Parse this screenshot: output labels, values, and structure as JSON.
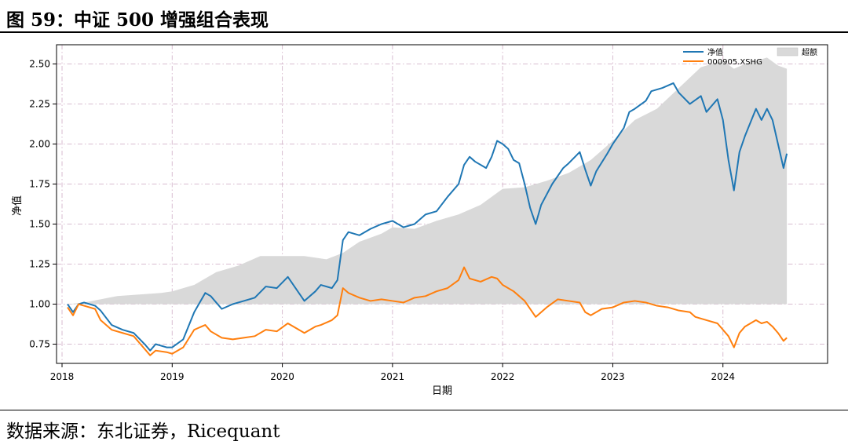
{
  "figure": {
    "title": "图 59：中证 500 增强组合表现",
    "source": "数据来源：东北证券，Ricequant"
  },
  "chart_data": {
    "type": "line",
    "xlabel": "日期",
    "ylabel": "净值",
    "xlim": [
      2017.95,
      2024.95
    ],
    "ylim": [
      0.63,
      2.62
    ],
    "x_ticks": [
      2018,
      2019,
      2020,
      2021,
      2022,
      2023,
      2024
    ],
    "x_tick_labels": [
      "2018",
      "2019",
      "2020",
      "2021",
      "2022",
      "2023",
      "2024"
    ],
    "y_ticks": [
      0.75,
      1.0,
      1.25,
      1.5,
      1.75,
      2.0,
      2.25,
      2.5
    ],
    "y_tick_labels": [
      "0.75",
      "1.00",
      "1.25",
      "1.50",
      "1.75",
      "2.00",
      "2.25",
      "2.50"
    ],
    "grid": true,
    "legend_placement": "top-right",
    "series": [
      {
        "name": "净值",
        "color": "#1f77b4",
        "points": [
          [
            2018.05,
            1.0
          ],
          [
            2018.1,
            0.95
          ],
          [
            2018.15,
            1.0
          ],
          [
            2018.2,
            1.01
          ],
          [
            2018.3,
            0.99
          ],
          [
            2018.35,
            0.96
          ],
          [
            2018.45,
            0.87
          ],
          [
            2018.55,
            0.84
          ],
          [
            2018.65,
            0.82
          ],
          [
            2018.75,
            0.75
          ],
          [
            2018.8,
            0.71
          ],
          [
            2018.85,
            0.75
          ],
          [
            2018.95,
            0.73
          ],
          [
            2019.0,
            0.73
          ],
          [
            2019.1,
            0.78
          ],
          [
            2019.2,
            0.95
          ],
          [
            2019.3,
            1.07
          ],
          [
            2019.35,
            1.05
          ],
          [
            2019.45,
            0.97
          ],
          [
            2019.55,
            1.0
          ],
          [
            2019.65,
            1.02
          ],
          [
            2019.75,
            1.04
          ],
          [
            2019.85,
            1.11
          ],
          [
            2019.95,
            1.1
          ],
          [
            2020.05,
            1.17
          ],
          [
            2020.2,
            1.02
          ],
          [
            2020.3,
            1.08
          ],
          [
            2020.35,
            1.12
          ],
          [
            2020.45,
            1.1
          ],
          [
            2020.5,
            1.15
          ],
          [
            2020.55,
            1.4
          ],
          [
            2020.6,
            1.45
          ],
          [
            2020.7,
            1.43
          ],
          [
            2020.8,
            1.47
          ],
          [
            2020.9,
            1.5
          ],
          [
            2021.0,
            1.52
          ],
          [
            2021.1,
            1.48
          ],
          [
            2021.2,
            1.5
          ],
          [
            2021.3,
            1.56
          ],
          [
            2021.4,
            1.58
          ],
          [
            2021.5,
            1.67
          ],
          [
            2021.6,
            1.75
          ],
          [
            2021.65,
            1.87
          ],
          [
            2021.7,
            1.92
          ],
          [
            2021.75,
            1.89
          ],
          [
            2021.85,
            1.85
          ],
          [
            2021.9,
            1.92
          ],
          [
            2021.95,
            2.02
          ],
          [
            2022.0,
            2.0
          ],
          [
            2022.05,
            1.97
          ],
          [
            2022.1,
            1.9
          ],
          [
            2022.15,
            1.88
          ],
          [
            2022.2,
            1.75
          ],
          [
            2022.25,
            1.6
          ],
          [
            2022.3,
            1.5
          ],
          [
            2022.35,
            1.62
          ],
          [
            2022.45,
            1.75
          ],
          [
            2022.55,
            1.85
          ],
          [
            2022.6,
            1.88
          ],
          [
            2022.7,
            1.95
          ],
          [
            2022.75,
            1.84
          ],
          [
            2022.8,
            1.74
          ],
          [
            2022.85,
            1.83
          ],
          [
            2022.95,
            1.94
          ],
          [
            2023.0,
            2.0
          ],
          [
            2023.1,
            2.1
          ],
          [
            2023.15,
            2.2
          ],
          [
            2023.2,
            2.22
          ],
          [
            2023.3,
            2.27
          ],
          [
            2023.35,
            2.33
          ],
          [
            2023.45,
            2.35
          ],
          [
            2023.55,
            2.38
          ],
          [
            2023.6,
            2.32
          ],
          [
            2023.7,
            2.25
          ],
          [
            2023.8,
            2.3
          ],
          [
            2023.85,
            2.2
          ],
          [
            2023.95,
            2.28
          ],
          [
            2024.0,
            2.15
          ],
          [
            2024.05,
            1.9
          ],
          [
            2024.1,
            1.71
          ],
          [
            2024.15,
            1.95
          ],
          [
            2024.2,
            2.05
          ],
          [
            2024.3,
            2.22
          ],
          [
            2024.35,
            2.15
          ],
          [
            2024.4,
            2.22
          ],
          [
            2024.45,
            2.15
          ],
          [
            2024.5,
            2.0
          ],
          [
            2024.55,
            1.85
          ],
          [
            2024.58,
            1.94
          ]
        ]
      },
      {
        "name": "000905.XSHG",
        "color": "#ff7f0e",
        "points": [
          [
            2018.05,
            0.98
          ],
          [
            2018.1,
            0.93
          ],
          [
            2018.15,
            1.0
          ],
          [
            2018.2,
            0.99
          ],
          [
            2018.3,
            0.97
          ],
          [
            2018.35,
            0.9
          ],
          [
            2018.45,
            0.84
          ],
          [
            2018.55,
            0.82
          ],
          [
            2018.65,
            0.8
          ],
          [
            2018.75,
            0.72
          ],
          [
            2018.8,
            0.68
          ],
          [
            2018.85,
            0.71
          ],
          [
            2018.95,
            0.7
          ],
          [
            2019.0,
            0.69
          ],
          [
            2019.1,
            0.73
          ],
          [
            2019.2,
            0.84
          ],
          [
            2019.3,
            0.87
          ],
          [
            2019.35,
            0.83
          ],
          [
            2019.45,
            0.79
          ],
          [
            2019.55,
            0.78
          ],
          [
            2019.65,
            0.79
          ],
          [
            2019.75,
            0.8
          ],
          [
            2019.85,
            0.84
          ],
          [
            2019.95,
            0.83
          ],
          [
            2020.05,
            0.88
          ],
          [
            2020.2,
            0.82
          ],
          [
            2020.3,
            0.86
          ],
          [
            2020.35,
            0.87
          ],
          [
            2020.45,
            0.9
          ],
          [
            2020.5,
            0.93
          ],
          [
            2020.55,
            1.1
          ],
          [
            2020.6,
            1.07
          ],
          [
            2020.7,
            1.04
          ],
          [
            2020.8,
            1.02
          ],
          [
            2020.9,
            1.03
          ],
          [
            2021.0,
            1.02
          ],
          [
            2021.1,
            1.01
          ],
          [
            2021.2,
            1.04
          ],
          [
            2021.3,
            1.05
          ],
          [
            2021.4,
            1.08
          ],
          [
            2021.5,
            1.1
          ],
          [
            2021.6,
            1.15
          ],
          [
            2021.65,
            1.23
          ],
          [
            2021.7,
            1.16
          ],
          [
            2021.8,
            1.14
          ],
          [
            2021.9,
            1.17
          ],
          [
            2021.95,
            1.16
          ],
          [
            2022.0,
            1.12
          ],
          [
            2022.1,
            1.08
          ],
          [
            2022.2,
            1.02
          ],
          [
            2022.3,
            0.92
          ],
          [
            2022.4,
            0.98
          ],
          [
            2022.5,
            1.03
          ],
          [
            2022.6,
            1.02
          ],
          [
            2022.7,
            1.01
          ],
          [
            2022.75,
            0.95
          ],
          [
            2022.8,
            0.93
          ],
          [
            2022.9,
            0.97
          ],
          [
            2023.0,
            0.98
          ],
          [
            2023.1,
            1.01
          ],
          [
            2023.2,
            1.02
          ],
          [
            2023.3,
            1.01
          ],
          [
            2023.4,
            0.99
          ],
          [
            2023.5,
            0.98
          ],
          [
            2023.6,
            0.96
          ],
          [
            2023.7,
            0.95
          ],
          [
            2023.75,
            0.92
          ],
          [
            2023.85,
            0.9
          ],
          [
            2023.95,
            0.88
          ],
          [
            2024.0,
            0.84
          ],
          [
            2024.05,
            0.8
          ],
          [
            2024.1,
            0.73
          ],
          [
            2024.15,
            0.82
          ],
          [
            2024.2,
            0.86
          ],
          [
            2024.3,
            0.9
          ],
          [
            2024.35,
            0.88
          ],
          [
            2024.4,
            0.89
          ],
          [
            2024.45,
            0.86
          ],
          [
            2024.5,
            0.82
          ],
          [
            2024.55,
            0.77
          ],
          [
            2024.58,
            0.79
          ]
        ]
      },
      {
        "name": "超额",
        "color": "#d9d9d9",
        "kind": "area",
        "baseline": 1.0,
        "points": [
          [
            2018.05,
            1.0
          ],
          [
            2018.2,
            1.01
          ],
          [
            2018.35,
            1.03
          ],
          [
            2018.5,
            1.05
          ],
          [
            2018.7,
            1.06
          ],
          [
            2018.9,
            1.07
          ],
          [
            2019.0,
            1.08
          ],
          [
            2019.2,
            1.12
          ],
          [
            2019.4,
            1.2
          ],
          [
            2019.6,
            1.24
          ],
          [
            2019.8,
            1.3
          ],
          [
            2020.0,
            1.3
          ],
          [
            2020.2,
            1.3
          ],
          [
            2020.4,
            1.28
          ],
          [
            2020.55,
            1.32
          ],
          [
            2020.7,
            1.39
          ],
          [
            2020.9,
            1.44
          ],
          [
            2021.0,
            1.48
          ],
          [
            2021.2,
            1.47
          ],
          [
            2021.4,
            1.52
          ],
          [
            2021.6,
            1.56
          ],
          [
            2021.8,
            1.62
          ],
          [
            2022.0,
            1.72
          ],
          [
            2022.2,
            1.73
          ],
          [
            2022.4,
            1.77
          ],
          [
            2022.6,
            1.82
          ],
          [
            2022.8,
            1.9
          ],
          [
            2023.0,
            2.02
          ],
          [
            2023.2,
            2.15
          ],
          [
            2023.4,
            2.22
          ],
          [
            2023.6,
            2.35
          ],
          [
            2023.8,
            2.48
          ],
          [
            2024.0,
            2.52
          ],
          [
            2024.1,
            2.47
          ],
          [
            2024.2,
            2.5
          ],
          [
            2024.4,
            2.54
          ],
          [
            2024.5,
            2.49
          ],
          [
            2024.58,
            2.47
          ]
        ]
      }
    ]
  }
}
